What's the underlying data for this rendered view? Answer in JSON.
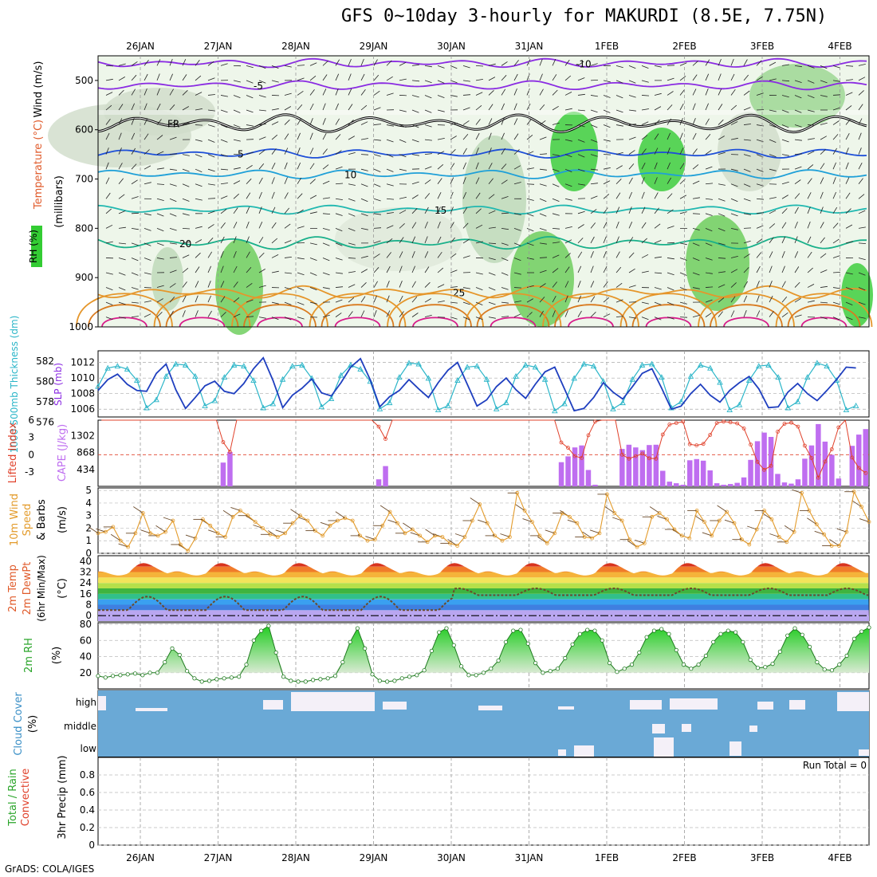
{
  "title": "GFS 0~10day 3-hourly for MAKURDI (8.5E, 7.75N)",
  "credit": "GrADS: COLA/IGES",
  "run_total": "Run Total = 0",
  "colors": {
    "rh_green": "#33cc33",
    "wind_speed": "#e39b2b",
    "temp_contour_purple": "#8a2be2",
    "temp_contour_blue": "#1e4fd8",
    "slp_line": "#1f3fbf",
    "thickness_line": "#2ab5c8",
    "cape_bar": "#bf6ef0",
    "lifted_index": "#e0402a",
    "cloud_cover": "#6aa9d6"
  },
  "chart_data": {
    "dates": [
      "26JAN",
      "27JAN",
      "28JAN",
      "29JAN",
      "30JAN",
      "31JAN",
      "1FEB",
      "2FEB",
      "3FEB",
      "4FEB"
    ],
    "panels": [
      {
        "id": "upper_air",
        "type": "contour",
        "ylabel_parts": [
          {
            "text": "Wind (m/s)",
            "color": "#000000"
          },
          {
            "text": "Temperature (°C)",
            "color": "#e05a2a"
          },
          {
            "text": "RH (%)",
            "color": "#2aa52a"
          },
          {
            "text": "(millibars)",
            "color": "#000000"
          }
        ],
        "yticks": [
          "500",
          "600",
          "700",
          "800",
          "900",
          "1000"
        ],
        "ylim": [
          1000,
          450
        ],
        "contour_labels": [
          "-10",
          "-5",
          "FR",
          "5",
          "10",
          "15",
          "20",
          "25"
        ]
      },
      {
        "id": "thickness_slp",
        "type": "line",
        "ylabel_left": "1000-500mb Thickness (dm)",
        "ylabel_right": "SLP (mb)",
        "yticks_left": [
          "582",
          "580",
          "578",
          "576"
        ],
        "yticks_right": [
          "1012",
          "1010",
          "1008",
          "1006"
        ],
        "series": [
          {
            "name": "Thickness",
            "values": [
              579.5,
              581.3,
              581.5,
              581.2,
              580.1,
              577.4,
              578.2,
              580.5,
              581.7,
              581.6,
              580.5,
              577.6,
              578.1,
              580.4,
              581.6,
              581.5,
              580.1,
              577.4,
              577.8,
              580.2,
              581.5,
              581.6,
              580.3,
              577.5,
              578.3,
              580.6,
              581.6,
              581.2,
              580.0,
              577.3,
              577.9,
              580.4,
              581.8,
              581.7,
              580.3,
              577.2,
              577.6,
              580.1,
              581.4,
              581.5,
              580.2,
              577.3,
              577.9,
              580.5,
              581.6,
              581.4,
              580.2,
              577.1,
              577.8,
              580.3,
              581.7,
              581.5,
              580.0,
              577.3,
              577.9,
              580.2,
              581.6,
              581.7,
              580.4,
              577.4,
              578.0,
              580.5,
              581.6,
              581.3,
              579.9,
              577.2,
              577.7,
              580.1,
              581.5,
              581.6,
              580.4,
              577.4,
              578.0,
              580.4,
              581.8,
              581.5,
              580.1,
              577.2,
              577.6
            ]
          },
          {
            "name": "SLP",
            "values": [
              1008.4,
              1009.8,
              1010.5,
              1009.2,
              1008.4,
              1008.3,
              1010.6,
              1011.8,
              1008.5,
              1006.1,
              1007.5,
              1009.0,
              1009.6,
              1008.3,
              1008.0,
              1009.3,
              1011.2,
              1012.6,
              1009.7,
              1006.2,
              1007.8,
              1008.7,
              1009.9,
              1008.1,
              1007.7,
              1009.4,
              1011.4,
              1012.5,
              1009.8,
              1006.3,
              1007.6,
              1008.4,
              1009.8,
              1008.6,
              1007.5,
              1009.4,
              1011.0,
              1012.0,
              1009.2,
              1006.4,
              1007.2,
              1008.9,
              1010.0,
              1008.5,
              1007.4,
              1009.2,
              1010.8,
              1011.4,
              1008.6,
              1005.8,
              1006.1,
              1007.5,
              1009.4,
              1008.2,
              1007.3,
              1008.9,
              1010.6,
              1011.2,
              1008.7,
              1006.0,
              1006.4,
              1008.0,
              1009.2,
              1007.8,
              1006.9,
              1008.4,
              1009.4,
              1010.2,
              1008.6,
              1006.2,
              1006.3,
              1008.2,
              1009.3,
              1008.0,
              1007.1,
              1008.4,
              1009.8,
              1011.4,
              1011.3
            ]
          }
        ]
      },
      {
        "id": "cape_li",
        "type": "bar+line",
        "ylabel_left": "Lifted Index",
        "ylabel_right": "CAPE (J/kg)",
        "yticks_left": [
          "-3",
          "0",
          "3",
          "6"
        ],
        "yticks_right": [
          "1302",
          "868",
          "434"
        ],
        "cape": [
          0,
          0,
          0,
          0,
          0,
          0,
          0,
          0,
          0,
          0,
          0,
          0,
          0,
          0,
          0,
          0,
          0,
          0,
          610,
          880,
          0,
          0,
          0,
          0,
          0,
          0,
          0,
          0,
          0,
          0,
          0,
          0,
          0,
          0,
          0,
          0,
          0,
          0,
          0,
          0,
          0,
          180,
          520,
          0,
          0,
          0,
          0,
          0,
          0,
          0,
          0,
          0,
          0,
          0,
          0,
          0,
          0,
          0,
          0,
          0,
          0,
          0,
          0,
          0,
          0,
          0,
          0,
          0,
          620,
          770,
          1000,
          1050,
          420,
          40,
          0,
          0,
          0,
          960,
          1070,
          1000,
          930,
          1060,
          1070,
          400,
          120,
          80,
          40,
          670,
          700,
          660,
          410,
          80,
          40,
          60,
          90,
          230,
          680,
          1160,
          1380,
          1270,
          320,
          100,
          70,
          180,
          710,
          1050,
          1600,
          1150,
          810,
          200,
          0,
          1040,
          1330,
          1470
        ]
      },
      {
        "id": "wind10m",
        "type": "line",
        "ylabel": "10m Wind Speed & Barbs (m/s)",
        "yticks": [
          "5",
          "4",
          "3",
          "2",
          "1",
          "0"
        ],
        "values": [
          1.6,
          1.7,
          2.1,
          1.0,
          0.5,
          1.6,
          3.2,
          1.6,
          1.4,
          1.7,
          2.6,
          0.7,
          0.2,
          1.2,
          2.7,
          2.2,
          1.6,
          1.3,
          2.9,
          3.4,
          3.0,
          2.5,
          2.0,
          1.5,
          1.3,
          1.6,
          2.4,
          3.0,
          2.6,
          1.8,
          1.4,
          2.2,
          2.6,
          2.8,
          2.6,
          1.4,
          1.0,
          1.1,
          2.2,
          3.3,
          2.4,
          1.6,
          1.9,
          1.4,
          0.9,
          1.4,
          1.3,
          0.8,
          0.6,
          1.3,
          2.6,
          3.9,
          2.4,
          1.4,
          1.0,
          1.3,
          4.8,
          3.4,
          2.5,
          1.4,
          0.8,
          1.6,
          3.2,
          2.9,
          2.4,
          1.3,
          1.2,
          1.6,
          4.7,
          3.2,
          2.6,
          1.1,
          0.5,
          0.8,
          2.9,
          3.2,
          2.7,
          1.9,
          1.4,
          1.2,
          3.4,
          2.5,
          1.4,
          2.6,
          3.3,
          2.4,
          1.1,
          0.7,
          1.9,
          3.4,
          2.7,
          1.3,
          0.9,
          1.7,
          4.8,
          3.4,
          2.3,
          1.5,
          0.6,
          0.6,
          1.7,
          4.9,
          3.7,
          2.5
        ]
      },
      {
        "id": "temp2m",
        "type": "area",
        "ylabel": "2m Temp 2m DewPt (6hr Min/Max) (°C)",
        "yticks": [
          "40",
          "32",
          "24",
          "16",
          "8",
          "0"
        ],
        "ylim": [
          -4,
          44
        ]
      },
      {
        "id": "rh2m",
        "type": "area",
        "ylabel": "2m RH (%)",
        "yticks": [
          "80",
          "60",
          "40",
          "20"
        ],
        "ylim": [
          0,
          80
        ],
        "values": [
          16,
          14,
          16,
          17,
          18,
          19,
          17,
          20,
          20,
          33,
          50,
          42,
          22,
          13,
          9,
          10,
          12,
          13,
          14,
          15,
          30,
          60,
          72,
          78,
          45,
          15,
          10,
          9,
          9,
          11,
          12,
          13,
          16,
          33,
          58,
          75,
          50,
          18,
          10,
          9,
          10,
          13,
          15,
          17,
          23,
          47,
          70,
          75,
          54,
          28,
          17,
          17,
          20,
          25,
          35,
          58,
          72,
          73,
          56,
          32,
          20,
          22,
          25,
          38,
          55,
          68,
          73,
          72,
          60,
          32,
          21,
          25,
          30,
          45,
          64,
          72,
          74,
          68,
          48,
          30,
          25,
          30,
          41,
          58,
          68,
          72,
          70,
          58,
          36,
          26,
          27,
          31,
          46,
          66,
          75,
          67,
          52,
          33,
          24,
          23,
          30,
          41,
          62,
          71,
          76
        ]
      },
      {
        "id": "cloud",
        "type": "heatmap",
        "ylabel": "Cloud Cover (%)",
        "levels": [
          "high",
          "middle",
          "low"
        ]
      },
      {
        "id": "precip",
        "type": "bar",
        "ylabel_left": "Total / Rain / Convective",
        "ylabel": "3hr Precip (mm)",
        "yticks": [
          "0.8",
          "0.6",
          "0.4",
          "0.2",
          "0"
        ],
        "ylim": [
          0,
          1
        ],
        "values": []
      }
    ]
  }
}
